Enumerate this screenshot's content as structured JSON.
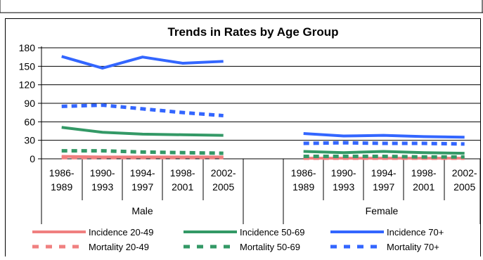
{
  "chart_data": {
    "type": "line",
    "title": "Trends in Rates by Age Group",
    "xlabel": "",
    "ylabel": "",
    "ylim": [
      0,
      180
    ],
    "yticks": [
      0,
      30,
      60,
      90,
      120,
      150,
      180
    ],
    "yticks_labels": [
      "0",
      "30",
      "60",
      "90",
      "120",
      "150",
      "180"
    ],
    "grid": true,
    "legend_position": "bottom",
    "groups": [
      {
        "name": "Male",
        "categories": [
          [
            "1986-",
            "1989"
          ],
          [
            "1990-",
            "1993"
          ],
          [
            "1994-",
            "1997"
          ],
          [
            "1998-",
            "2001"
          ],
          [
            "2002-",
            "2005"
          ]
        ]
      },
      {
        "name": "Female",
        "categories": [
          [
            "1986-",
            "1989"
          ],
          [
            "1990-",
            "1993"
          ],
          [
            "1994-",
            "1997"
          ],
          [
            "1998-",
            "2001"
          ],
          [
            "2002-",
            "2005"
          ]
        ]
      }
    ],
    "series": [
      {
        "name": "Incidence 20-49",
        "color": "#F08080",
        "style": "solid",
        "values": {
          "Male": [
            4,
            3,
            3,
            3,
            3
          ],
          "Female": [
            1,
            1,
            1,
            1,
            1
          ]
        }
      },
      {
        "name": "Incidence 50-69",
        "color": "#339966",
        "style": "solid",
        "values": {
          "Male": [
            51,
            43,
            40,
            39,
            38
          ],
          "Female": [
            12,
            10,
            12,
            10,
            9
          ]
        }
      },
      {
        "name": "Incidence 70+",
        "color": "#3366FF",
        "style": "solid",
        "values": {
          "Male": [
            166,
            147,
            165,
            155,
            158
          ],
          "Female": [
            41,
            37,
            38,
            36,
            35
          ]
        }
      },
      {
        "name": "Mortality 20-49",
        "color": "#F08080",
        "style": "dashed",
        "values": {
          "Male": [
            2,
            2,
            2,
            2,
            2
          ],
          "Female": [
            1,
            1,
            1,
            1,
            1
          ]
        }
      },
      {
        "name": "Mortality 50-69",
        "color": "#339966",
        "style": "dashed",
        "values": {
          "Male": [
            13,
            13,
            11,
            10,
            9
          ],
          "Female": [
            4,
            4,
            4,
            3,
            3
          ]
        }
      },
      {
        "name": "Mortality 70+",
        "color": "#3366FF",
        "style": "dashed",
        "values": {
          "Male": [
            85,
            87,
            81,
            75,
            70
          ],
          "Female": [
            25,
            26,
            25,
            25,
            24
          ]
        }
      }
    ]
  }
}
